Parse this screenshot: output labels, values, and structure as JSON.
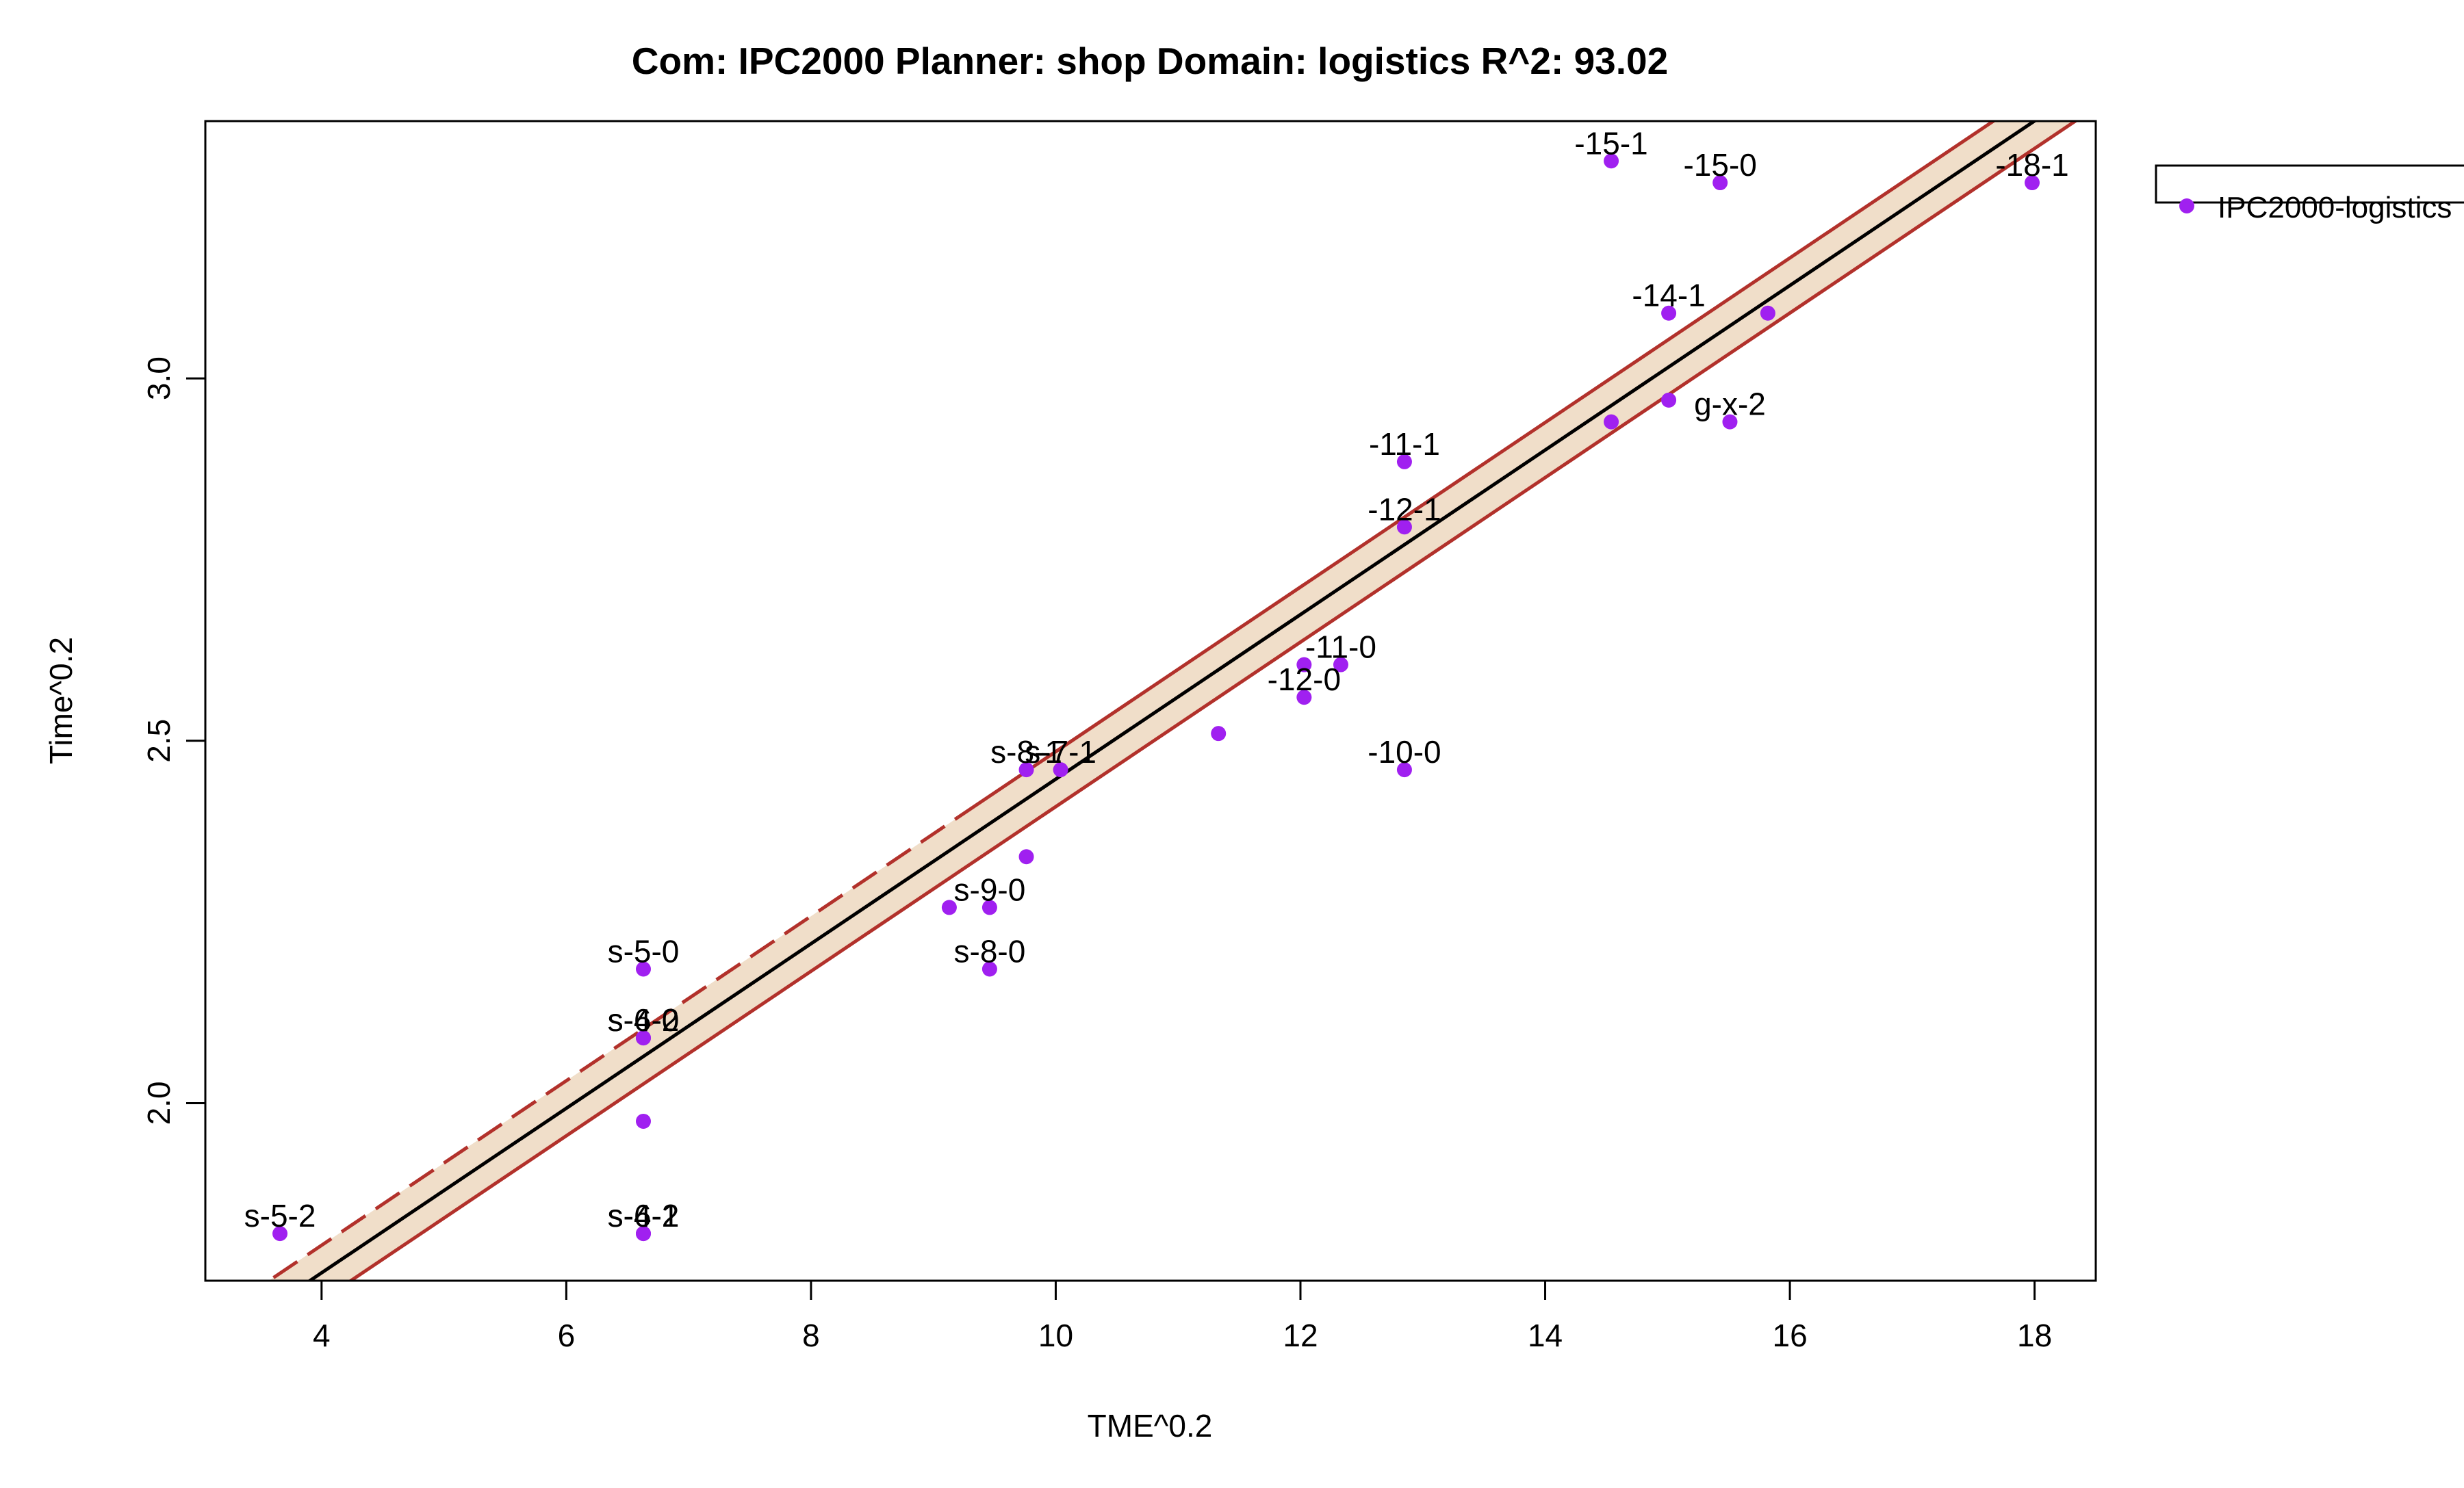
{
  "chart_data": {
    "type": "scatter",
    "title": "Com: IPC2000 Planner: shop Domain: logistics R^2: 93.02",
    "xlabel": "TME^0.2",
    "ylabel": "Time^0.2",
    "xlim": [
      3.05,
      18.5
    ],
    "ylim": [
      1.755,
      3.355
    ],
    "x_ticks": [
      4,
      6,
      8,
      10,
      12,
      14,
      16,
      18
    ],
    "y_ticks": [
      2.0,
      2.5,
      3.0
    ],
    "x_tick_labels": [
      "4",
      "6",
      "8",
      "10",
      "12",
      "14",
      "16",
      "18"
    ],
    "y_tick_labels": [
      "2.0",
      "2.5",
      "3.0"
    ],
    "grid": false,
    "legend_position": "top-right",
    "series": [
      {
        "name": "IPC2000-logistics",
        "color": "#a020f0",
        "points": [
          {
            "x": 3.66,
            "y": 1.82,
            "label": "s-5-2"
          },
          {
            "x": 6.63,
            "y": 1.82,
            "label": "s-4-2"
          },
          {
            "x": 6.63,
            "y": 1.82,
            "label": "s-6-1"
          },
          {
            "x": 6.63,
            "y": 1.975,
            "label": ""
          },
          {
            "x": 6.63,
            "y": 2.09,
            "label": "s-6-0"
          },
          {
            "x": 6.63,
            "y": 2.09,
            "label": "s-4-2"
          },
          {
            "x": 6.63,
            "y": 2.185,
            "label": "s-5-0"
          },
          {
            "x": 9.13,
            "y": 2.27,
            "label": ""
          },
          {
            "x": 9.46,
            "y": 2.27,
            "label": "s-9-0"
          },
          {
            "x": 9.46,
            "y": 2.185,
            "label": "s-8-0"
          },
          {
            "x": 9.76,
            "y": 2.34,
            "label": ""
          },
          {
            "x": 9.76,
            "y": 2.46,
            "label": "s-8-1"
          },
          {
            "x": 10.04,
            "y": 2.46,
            "label": "s-7-1"
          },
          {
            "x": 11.33,
            "y": 2.51,
            "label": ""
          },
          {
            "x": 12.03,
            "y": 2.56,
            "label": "-12-0"
          },
          {
            "x": 12.03,
            "y": 2.605,
            "label": ""
          },
          {
            "x": 12.33,
            "y": 2.605,
            "label": "-11-0"
          },
          {
            "x": 12.85,
            "y": 2.46,
            "label": "-10-0"
          },
          {
            "x": 12.85,
            "y": 2.795,
            "label": "-12-1"
          },
          {
            "x": 12.85,
            "y": 2.885,
            "label": "-11-1"
          },
          {
            "x": 14.54,
            "y": 2.94,
            "label": ""
          },
          {
            "x": 15.01,
            "y": 2.97,
            "label": ""
          },
          {
            "x": 15.51,
            "y": 2.94,
            "label": "g-x-2"
          },
          {
            "x": 15.01,
            "y": 3.09,
            "label": "-14-1"
          },
          {
            "x": 15.82,
            "y": 3.09,
            "label": ""
          },
          {
            "x": 14.54,
            "y": 3.3,
            "label": "-15-1"
          },
          {
            "x": 15.43,
            "y": 3.27,
            "label": "-15-0"
          },
          {
            "x": 17.98,
            "y": 3.27,
            "label": "-18-1"
          }
        ]
      }
    ],
    "fit_line": {
      "x0": 3.05,
      "y0": 1.658,
      "x1": 18.5,
      "y1": 3.412,
      "color": "#000000"
    },
    "band_offset": 0.038,
    "band_fill": "#f0dec9",
    "band_line_color": "#b2312b"
  }
}
